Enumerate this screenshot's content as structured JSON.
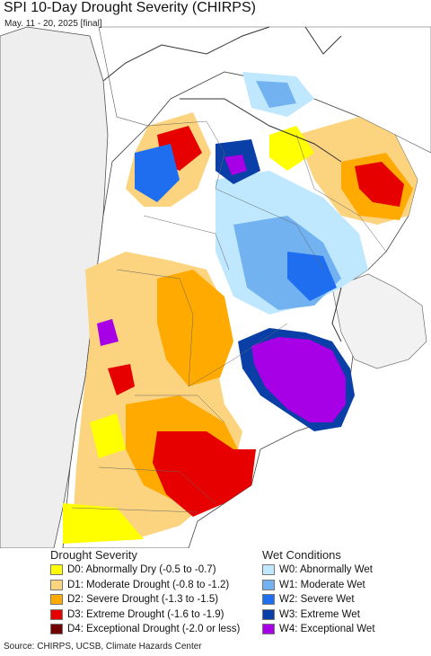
{
  "header": {
    "title": "SPI 10-Day Drought Severity (CHIRPS)",
    "subtitle": "May. 11 - 20, 2025 [final]"
  },
  "legend": {
    "drought_title": "Drought Severity",
    "wet_title": "Wet Conditions",
    "drought_items": [
      {
        "label": "D0: Abnormally Dry (-0.5 to -0.7)",
        "color": "#ffff00"
      },
      {
        "label": "D1: Moderate Drought (-0.8 to -1.2)",
        "color": "#fcd37f"
      },
      {
        "label": "D2: Severe Drought (-1.3 to -1.5)",
        "color": "#ffaa00"
      },
      {
        "label": "D3: Extreme Drought (-1.6 to -1.9)",
        "color": "#e60000"
      },
      {
        "label": "D4: Exceptional Drought (-2.0 or less)",
        "color": "#730000"
      }
    ],
    "wet_items": [
      {
        "label": "W0: Abnormally Wet",
        "color": "#bfe8ff"
      },
      {
        "label": "W1: Moderate Wet",
        "color": "#72b2f0"
      },
      {
        "label": "W2: Severe Wet",
        "color": "#1f6ef0"
      },
      {
        "label": "W3: Extreme Wet",
        "color": "#0b3fa8"
      },
      {
        "label": "W4: Exceptional Wet",
        "color": "#a800e6"
      }
    ]
  },
  "footer": {
    "source": "Source: CHIRPS, UCSB, Climate Hazards Center"
  }
}
